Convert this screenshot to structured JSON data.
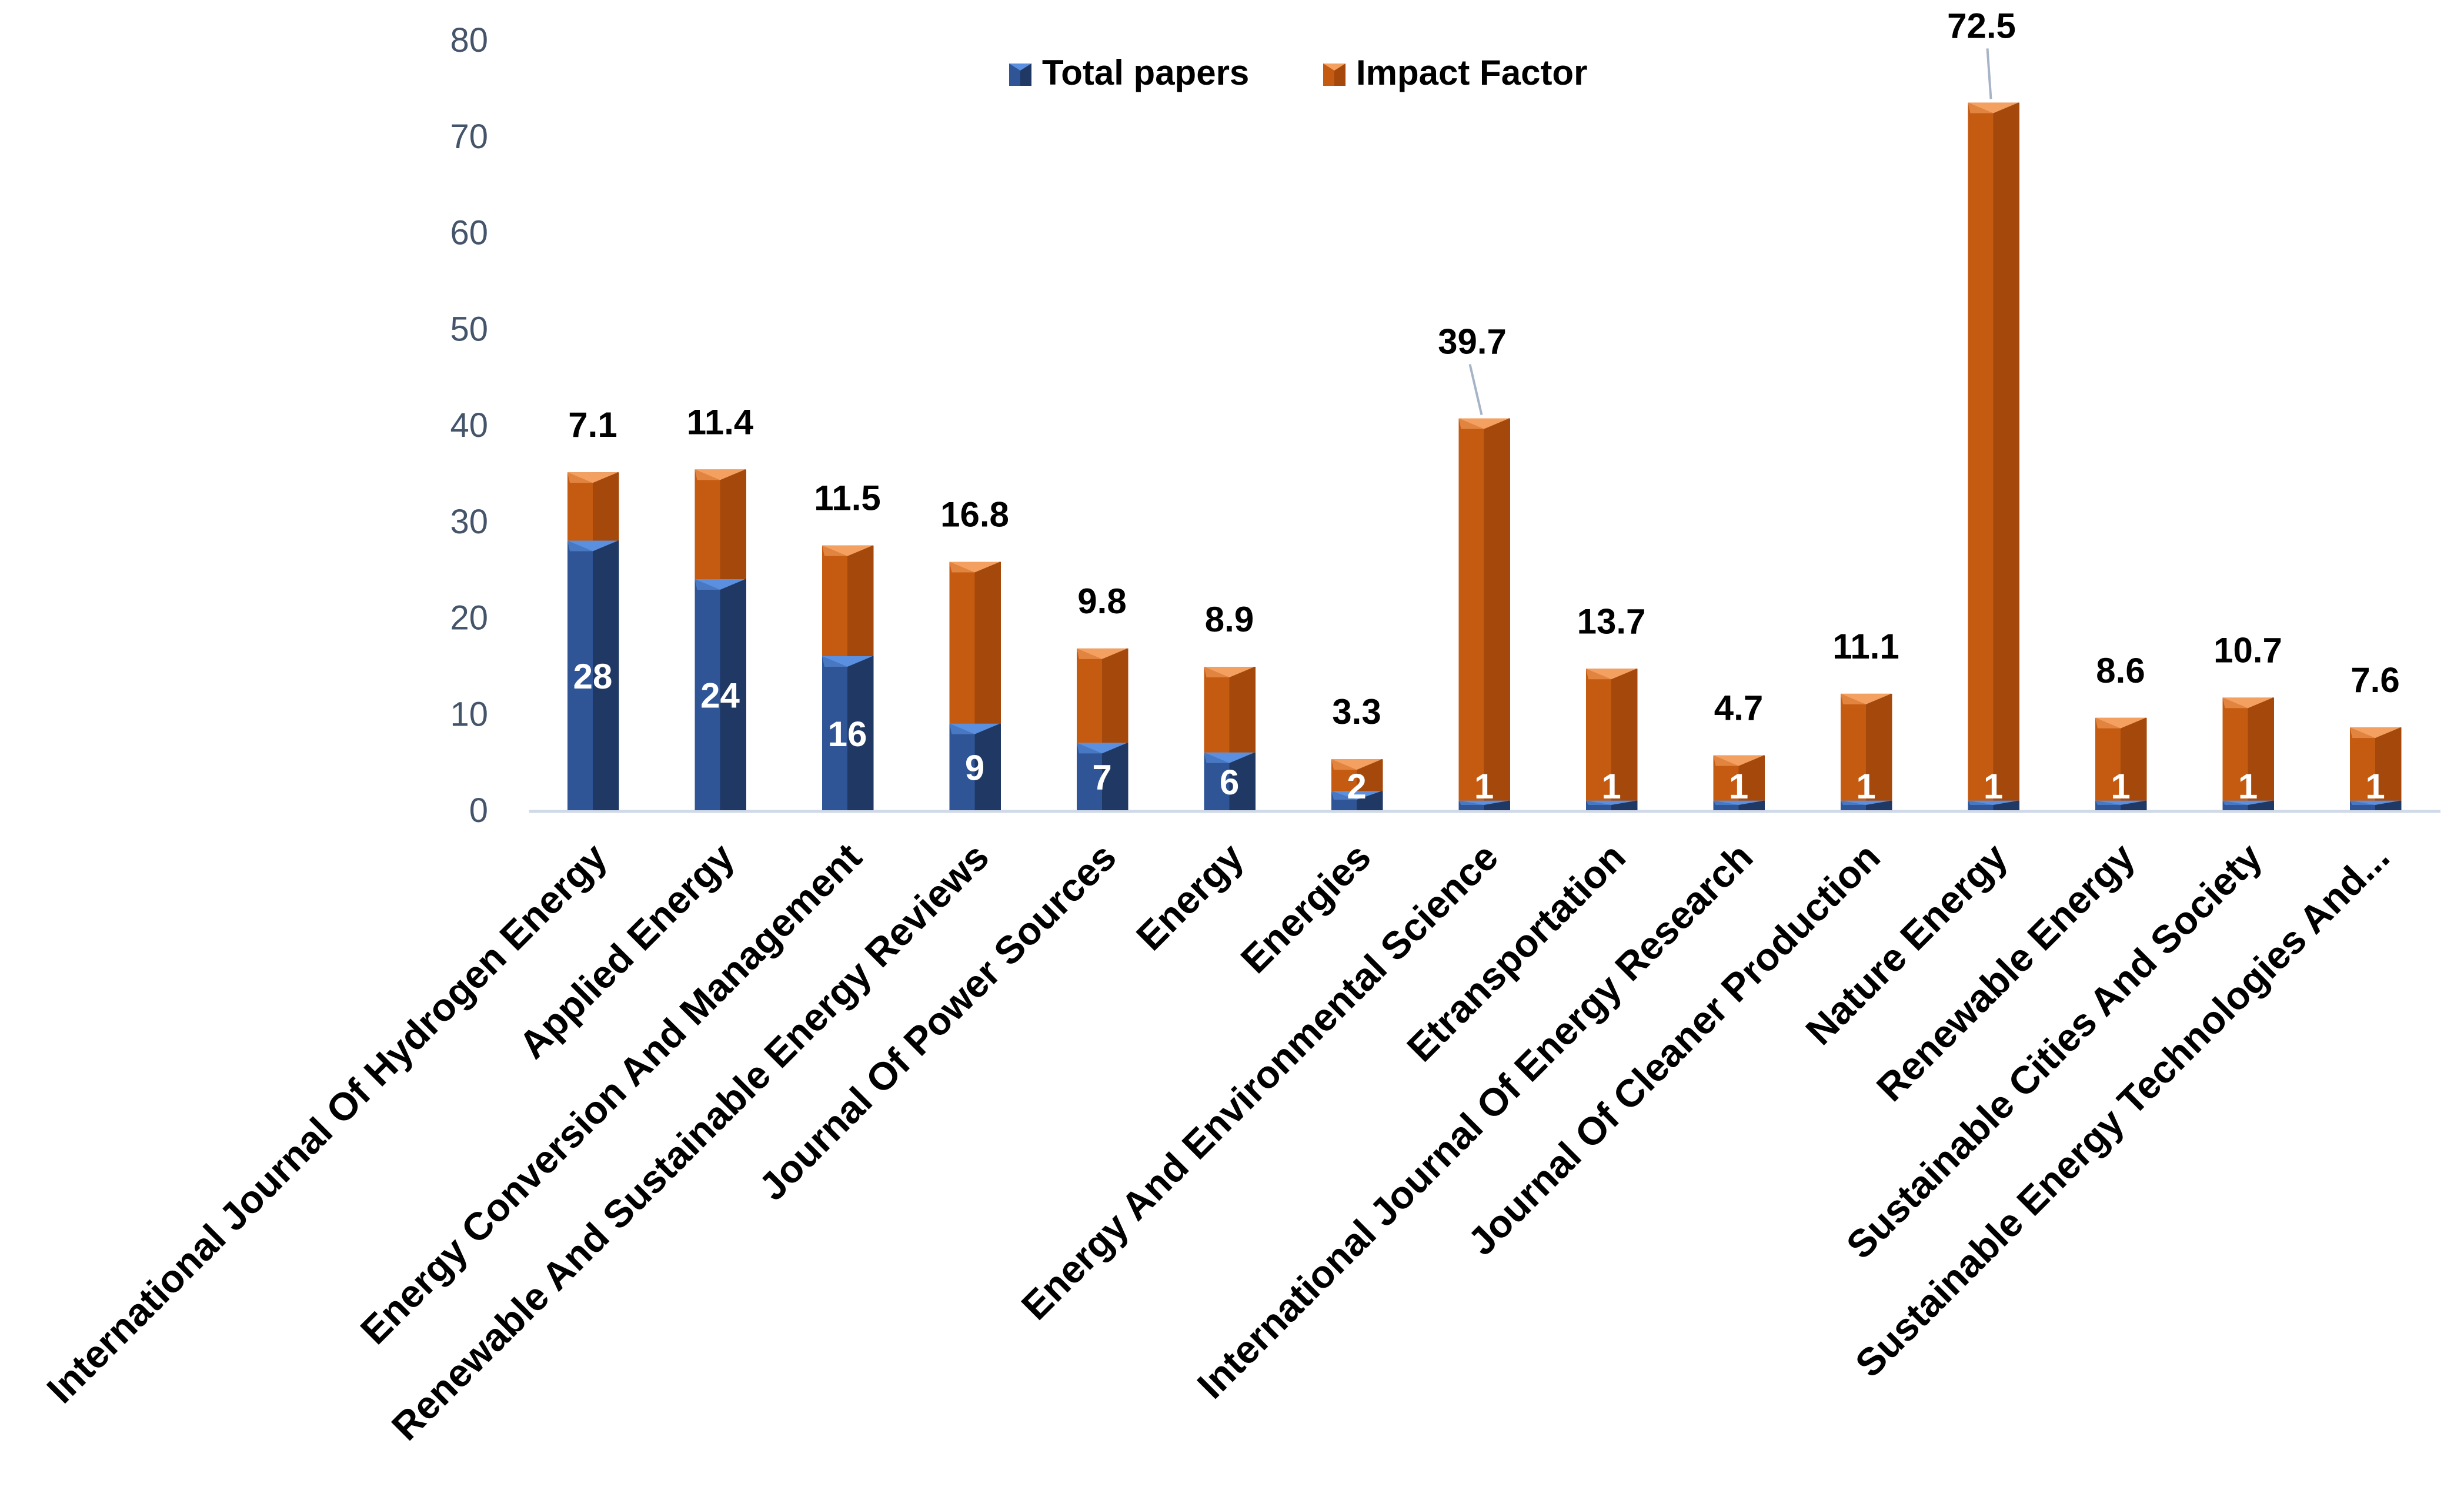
{
  "chart_data": {
    "type": "bar",
    "stacked": true,
    "title": "",
    "xlabel": "",
    "ylabel": "",
    "ylim": [
      0,
      80
    ],
    "yticks": [
      0,
      10,
      20,
      30,
      40,
      50,
      60,
      70,
      80
    ],
    "legend_position": "top-center",
    "categories": [
      "International Journal Of Hydrogen Energy",
      "Applied Energy",
      "Energy Conversion And Management",
      "Renewable And Sustainable Energy Reviews",
      "Journal Of Power Sources",
      "Energy",
      "Energies",
      "Energy And Environmental Science",
      "Etransportation",
      "International Journal Of Energy Research",
      "Journal Of Cleaner Production",
      "Nature Energy",
      "Renewable Energy",
      "Sustainable Cities And Society",
      "Sustainable Energy Technologies And..."
    ],
    "series": [
      {
        "name": "Total papers",
        "color": "#2f5597",
        "values": [
          28,
          24,
          16,
          9,
          7,
          6,
          2,
          1,
          1,
          1,
          1,
          1,
          1,
          1,
          1
        ],
        "labels": [
          "28",
          "24",
          "16",
          "9",
          "7",
          "6",
          "2",
          "1",
          "1",
          "1",
          "1",
          "1",
          "1",
          "1",
          "1"
        ]
      },
      {
        "name": "Impact Factor",
        "color": "#c55a11",
        "values": [
          7.1,
          11.4,
          11.5,
          16.8,
          9.8,
          8.9,
          3.3,
          39.7,
          13.7,
          4.7,
          11.1,
          72.5,
          8.6,
          10.7,
          7.6
        ],
        "labels": [
          "7.1",
          "11.4",
          "11.5",
          "16.8",
          "9.8",
          "8.9",
          "3.3",
          "39.7",
          "13.7",
          "4.7",
          "11.1",
          "72.5",
          "8.6",
          "10.7",
          "7.6"
        ]
      }
    ]
  },
  "colors": {
    "blue_dark": "#1f3864",
    "blue_mid": "#2f5597",
    "blue_light": "#5b8fe0",
    "orange_dark": "#a4480c",
    "orange_mid": "#c55a11",
    "orange_light": "#f4a061",
    "axis_text": "#44546a",
    "axis_line": "#d0d9e8"
  }
}
